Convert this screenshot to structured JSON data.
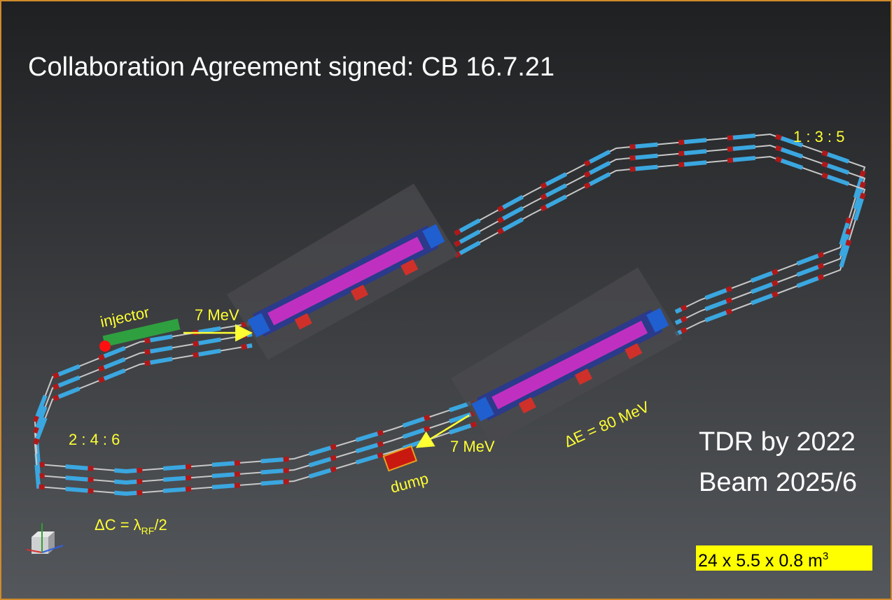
{
  "title": "Collaboration Agreement signed: CB 16.7.21",
  "labels": {
    "ratio_top": "1 : 3 : 5",
    "injector": "injector",
    "injection_energy": "7 MeV",
    "ratio_bottom": "2 : 4 : 6",
    "dump": "dump",
    "dump_energy": "7 MeV",
    "energy_gain": "ΔE = 80 MeV",
    "path_delta": {
      "main": "ΔC = λ",
      "sub": "RF",
      "tail": "/2"
    }
  },
  "notes": [
    "TDR by 2022",
    "Beam 2025/6"
  ],
  "dimensions": {
    "main": "24 x 5.5 x 0.8 m",
    "sup": "3"
  }
}
